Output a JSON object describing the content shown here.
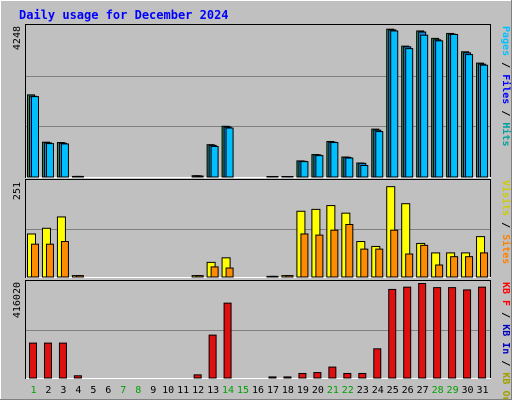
{
  "colors": {
    "background": "#C0C0C0",
    "grid": "#808080",
    "title_text": "#0000FF",
    "day_normal": "#000000",
    "day_weekend": "#00A000",
    "hits": "#00A0A0",
    "hits_bar": "#2E8B57",
    "files": "#0000FF",
    "files_bar": "#0C8AE6",
    "pages": "#00C0FF",
    "pages_bar": "#00BFFF",
    "visits": "#CCCC00",
    "visits_bar": "#FFFF00",
    "sites": "#FF8000",
    "sites_bar": "#FF8C00",
    "kb_out": "#A0A000",
    "kb_in": "#0000C0",
    "kb_f": "#FF0000",
    "kb_bar": "#E01010"
  },
  "chart_data": {
    "type": "bar",
    "title": "Daily usage for December 2024",
    "categories": [
      "1",
      "2",
      "3",
      "4",
      "5",
      "6",
      "7",
      "8",
      "9",
      "10",
      "11",
      "12",
      "13",
      "14",
      "15",
      "16",
      "17",
      "18",
      "19",
      "20",
      "21",
      "22",
      "23",
      "24",
      "25",
      "26",
      "27",
      "28",
      "29",
      "30",
      "31"
    ],
    "weekend_days": [
      "1",
      "7",
      "8",
      "14",
      "15",
      "21",
      "22",
      "28",
      "29"
    ],
    "panels": [
      {
        "name": "hits_files_pages",
        "ymax_label": "4248",
        "ylim": [
          0,
          4248
        ],
        "legend": [
          "Pages",
          "/",
          "Files",
          "/",
          "Hits"
        ],
        "series": [
          {
            "name": "Hits",
            "values": [
              2340,
              1000,
              990,
              30,
              0,
              0,
              0,
              0,
              0,
              0,
              0,
              50,
              930,
              1450,
              0,
              0,
              20,
              20,
              470,
              650,
              1020,
              580,
              410,
              1370,
              4200,
              3720,
              4150,
              3940,
              4080,
              3560,
              3240
            ]
          },
          {
            "name": "Files",
            "values": [
              2300,
              980,
              970,
              30,
              0,
              0,
              0,
              0,
              0,
              0,
              0,
              50,
              910,
              1430,
              0,
              0,
              20,
              20,
              460,
              640,
              1000,
              570,
              400,
              1340,
              4180,
              3700,
              4120,
              3900,
              4060,
              3530,
              3210
            ]
          },
          {
            "name": "Pages",
            "values": [
              2290,
              960,
              950,
              30,
              0,
              0,
              0,
              0,
              0,
              0,
              0,
              40,
              880,
              1400,
              0,
              0,
              20,
              20,
              450,
              620,
              990,
              550,
              340,
              1300,
              4150,
              3650,
              4030,
              3870,
              4050,
              3480,
              3180
            ]
          }
        ]
      },
      {
        "name": "visits_sites",
        "ymax_label": "251",
        "ylim": [
          0,
          251
        ],
        "legend": [
          "Visits",
          "/",
          "Sites"
        ],
        "series": [
          {
            "name": "Visits",
            "values": [
              115,
              130,
              160,
              5,
              0,
              0,
              0,
              0,
              0,
              0,
              0,
              5,
              40,
              52,
              0,
              0,
              3,
              5,
              175,
              180,
              190,
              170,
              95,
              82,
              240,
              195,
              90,
              65,
              65,
              65,
              108
            ]
          },
          {
            "name": "Sites",
            "values": [
              88,
              88,
              95,
              5,
              0,
              0,
              0,
              0,
              0,
              0,
              0,
              5,
              28,
              25,
              0,
              0,
              3,
              5,
              115,
              112,
              125,
              140,
              75,
              75,
              125,
              62,
              85,
              33,
              55,
              55,
              65
            ]
          }
        ]
      },
      {
        "name": "kbytes",
        "ymax_label": "416020",
        "ylim": [
          0,
          416020
        ],
        "legend": [
          "KB F",
          "/",
          "KB In",
          "/",
          "KB Out"
        ],
        "series": [
          {
            "name": "KB F",
            "values": [
              155000,
              155000,
              155000,
              12000,
              0,
              0,
              0,
              0,
              0,
              0,
              0,
              16000,
              190000,
              330000,
              0,
              0,
              7000,
              7000,
              22000,
              26000,
              50000,
              22000,
              22000,
              130000,
              390000,
              400000,
              416020,
              398000,
              398000,
              388000,
              400000
            ]
          }
        ]
      }
    ]
  }
}
